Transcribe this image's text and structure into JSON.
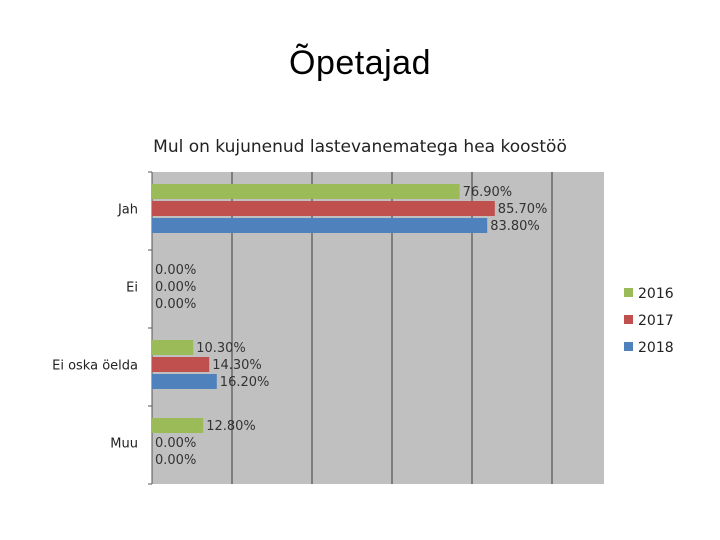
{
  "page": {
    "title": "Õpetajad"
  },
  "chart_data": {
    "type": "bar",
    "orientation": "horizontal",
    "title": "Mul on kujunenud lastevanematega hea koostöö",
    "categories": [
      "Jah",
      "Ei",
      "Ei oska öelda",
      "Muu"
    ],
    "series": [
      {
        "name": "2016",
        "color": "#9bbb59",
        "values": [
          76.9,
          0.0,
          10.3,
          12.8
        ],
        "labels": [
          "76.90%",
          "0.00%",
          "10.30%",
          "12.80%"
        ]
      },
      {
        "name": "2017",
        "color": "#c0504d",
        "values": [
          85.7,
          0.0,
          14.3,
          0.0
        ],
        "labels": [
          "85.70%",
          "0.00%",
          "14.30%",
          "0.00%"
        ]
      },
      {
        "name": "2018",
        "color": "#4f81bd",
        "values": [
          83.8,
          0.0,
          16.2,
          0.0
        ],
        "labels": [
          "83.80%",
          "0.00%",
          "16.20%",
          "0.00%"
        ]
      }
    ],
    "xlim": [
      0,
      100
    ],
    "grid": true,
    "plot_background": "#c0c0c0",
    "legend": "right"
  }
}
